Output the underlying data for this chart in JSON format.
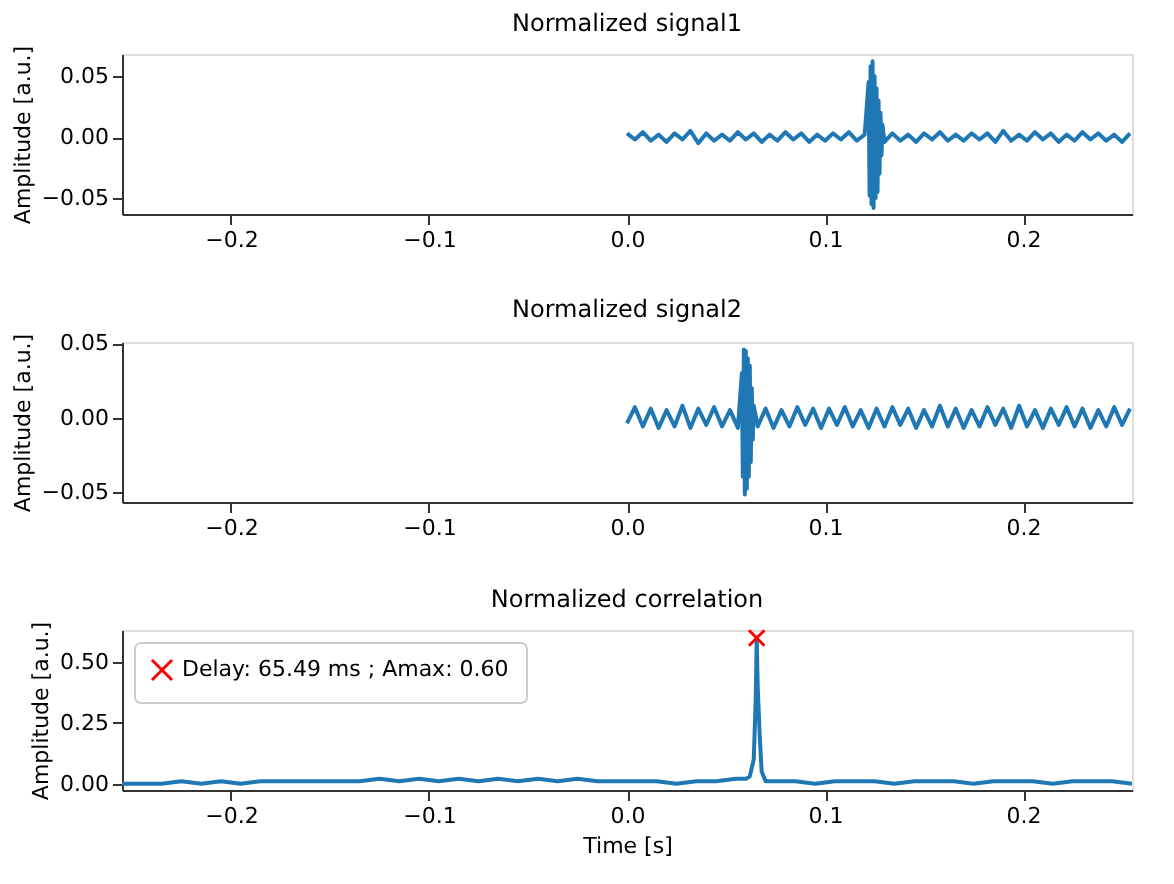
{
  "chart_data": [
    {
      "type": "line",
      "title": "Normalized signal1",
      "ylabel": "Amplitude [a.u.]",
      "xlim": [
        -0.255,
        0.255
      ],
      "ylim": [
        -0.063,
        0.068
      ],
      "xticks": [
        {
          "value": -0.2,
          "label": "−0.2"
        },
        {
          "value": -0.1,
          "label": "−0.1"
        },
        {
          "value": 0,
          "label": "0.0"
        },
        {
          "value": 0.1,
          "label": "0.1"
        },
        {
          "value": 0.2,
          "label": "0.2"
        }
      ],
      "yticks": [
        {
          "value": -0.05,
          "label": "−0.05"
        },
        {
          "value": 0,
          "label": "0.00"
        },
        {
          "value": 0.05,
          "label": "0.05"
        }
      ],
      "grid": false,
      "series": [
        {
          "color": "#1f77b4",
          "x": [
            0,
            0.004,
            0.008,
            0.012,
            0.016,
            0.02,
            0.024,
            0.028,
            0.032,
            0.036,
            0.04,
            0.044,
            0.048,
            0.052,
            0.056,
            0.06,
            0.064,
            0.068,
            0.072,
            0.076,
            0.08,
            0.084,
            0.088,
            0.092,
            0.096,
            0.1,
            0.104,
            0.108,
            0.112,
            0.116,
            0.12,
            0.122,
            0.1225,
            0.123,
            0.1235,
            0.124,
            0.1245,
            0.125,
            0.1255,
            0.126,
            0.1265,
            0.127,
            0.1275,
            0.128,
            0.1285,
            0.129,
            0.13,
            0.134,
            0.138,
            0.142,
            0.146,
            0.15,
            0.154,
            0.158,
            0.162,
            0.166,
            0.17,
            0.174,
            0.178,
            0.182,
            0.186,
            0.19,
            0.194,
            0.198,
            0.202,
            0.206,
            0.21,
            0.214,
            0.218,
            0.222,
            0.226,
            0.23,
            0.234,
            0.238,
            0.242,
            0.246,
            0.25,
            0.254
          ],
          "values": [
            0.003,
            -0.002,
            0.004,
            -0.003,
            0.002,
            -0.004,
            0.003,
            -0.002,
            0.005,
            -0.005,
            0.003,
            -0.003,
            0.002,
            -0.003,
            0.004,
            -0.002,
            0.003,
            -0.004,
            0.002,
            -0.003,
            0.004,
            -0.002,
            0.003,
            -0.004,
            0.002,
            -0.003,
            0.003,
            -0.002,
            0.004,
            -0.003,
            0.002,
            0.045,
            -0.048,
            0.058,
            -0.055,
            0.062,
            -0.058,
            0.05,
            -0.05,
            0.04,
            -0.045,
            0.03,
            -0.03,
            0.02,
            -0.015,
            0.01,
            -0.004,
            0.003,
            -0.003,
            0.002,
            -0.004,
            0.003,
            -0.002,
            0.004,
            -0.003,
            0.002,
            -0.003,
            0.003,
            -0.002,
            0.003,
            -0.004,
            0.005,
            -0.003,
            0.002,
            -0.003,
            0.004,
            -0.002,
            0.003,
            -0.004,
            0.002,
            -0.003,
            0.004,
            -0.002,
            0.003,
            -0.003,
            0.002,
            -0.004,
            0.003
          ]
        }
      ]
    },
    {
      "type": "line",
      "title": "Normalized signal2",
      "ylabel": "Amplitude [a.u.]",
      "xlim": [
        -0.255,
        0.255
      ],
      "ylim": [
        -0.057,
        0.051
      ],
      "xticks": [
        {
          "value": -0.2,
          "label": "−0.2"
        },
        {
          "value": -0.1,
          "label": "−0.1"
        },
        {
          "value": 0,
          "label": "0.0"
        },
        {
          "value": 0.1,
          "label": "0.1"
        },
        {
          "value": 0.2,
          "label": "0.2"
        }
      ],
      "yticks": [
        {
          "value": -0.05,
          "label": "−0.05"
        },
        {
          "value": 0,
          "label": "0.00"
        },
        {
          "value": 0.05,
          "label": "0.05"
        }
      ],
      "grid": false,
      "series": [
        {
          "color": "#1f77b4",
          "x": [
            0,
            0.004,
            0.008,
            0.012,
            0.016,
            0.02,
            0.024,
            0.028,
            0.032,
            0.036,
            0.04,
            0.044,
            0.048,
            0.052,
            0.056,
            0.058,
            0.0585,
            0.059,
            0.0595,
            0.06,
            0.0605,
            0.061,
            0.0615,
            0.062,
            0.0625,
            0.063,
            0.0635,
            0.064,
            0.066,
            0.07,
            0.074,
            0.078,
            0.082,
            0.086,
            0.09,
            0.094,
            0.098,
            0.102,
            0.106,
            0.11,
            0.114,
            0.118,
            0.122,
            0.126,
            0.13,
            0.134,
            0.138,
            0.142,
            0.146,
            0.15,
            0.154,
            0.158,
            0.162,
            0.166,
            0.17,
            0.174,
            0.178,
            0.182,
            0.186,
            0.19,
            0.194,
            0.198,
            0.202,
            0.206,
            0.21,
            0.214,
            0.218,
            0.222,
            0.226,
            0.23,
            0.234,
            0.238,
            0.242,
            0.246,
            0.25,
            0.254
          ],
          "values": [
            -0.004,
            0.007,
            -0.006,
            0.006,
            -0.007,
            0.005,
            -0.006,
            0.008,
            -0.007,
            0.006,
            -0.005,
            0.007,
            -0.006,
            0.005,
            -0.007,
            0.03,
            -0.04,
            0.046,
            -0.052,
            0.045,
            -0.048,
            0.04,
            -0.04,
            0.035,
            -0.03,
            0.02,
            -0.015,
            0.008,
            -0.006,
            0.006,
            -0.007,
            0.005,
            -0.006,
            0.007,
            -0.005,
            0.006,
            -0.007,
            0.006,
            -0.005,
            0.007,
            -0.006,
            0.005,
            -0.007,
            0.006,
            -0.006,
            0.007,
            -0.005,
            0.006,
            -0.007,
            0.005,
            -0.006,
            0.008,
            -0.006,
            0.006,
            -0.007,
            0.005,
            -0.006,
            0.007,
            -0.005,
            0.006,
            -0.007,
            0.008,
            -0.006,
            0.005,
            -0.007,
            0.006,
            -0.005,
            0.007,
            -0.006,
            0.006,
            -0.007,
            0.005,
            -0.006,
            0.007,
            -0.005,
            0.006
          ]
        }
      ]
    },
    {
      "type": "line",
      "title": "Normalized correlation",
      "xlabel": "Time [s]",
      "ylabel": "Amplitude [a.u.]",
      "xlim": [
        -0.255,
        0.255
      ],
      "ylim": [
        -0.026,
        0.633
      ],
      "xticks": [
        {
          "value": -0.2,
          "label": "−0.2"
        },
        {
          "value": -0.1,
          "label": "−0.1"
        },
        {
          "value": 0,
          "label": "0.0"
        },
        {
          "value": 0.1,
          "label": "0.1"
        },
        {
          "value": 0.2,
          "label": "0.2"
        }
      ],
      "yticks": [
        {
          "value": 0,
          "label": "0.00"
        },
        {
          "value": 0.25,
          "label": "0.25"
        },
        {
          "value": 0.5,
          "label": "0.50"
        }
      ],
      "grid": false,
      "legend": "top left",
      "series": [
        {
          "color": "#1f77b4",
          "x": [
            -0.255,
            -0.245,
            -0.235,
            -0.225,
            -0.215,
            -0.205,
            -0.195,
            -0.185,
            -0.175,
            -0.165,
            -0.155,
            -0.145,
            -0.135,
            -0.125,
            -0.115,
            -0.105,
            -0.095,
            -0.085,
            -0.075,
            -0.065,
            -0.055,
            -0.045,
            -0.035,
            -0.025,
            -0.015,
            -0.005,
            0.005,
            0.015,
            0.025,
            0.035,
            0.045,
            0.055,
            0.06,
            0.062,
            0.064,
            0.065,
            0.06549,
            0.066,
            0.067,
            0.068,
            0.07,
            0.075,
            0.085,
            0.095,
            0.105,
            0.115,
            0.125,
            0.135,
            0.145,
            0.155,
            0.165,
            0.175,
            0.185,
            0.195,
            0.205,
            0.215,
            0.225,
            0.235,
            0.245,
            0.255
          ],
          "values": [
            0,
            0,
            0,
            0.01,
            0,
            0.01,
            0,
            0.01,
            0.01,
            0.01,
            0.01,
            0.01,
            0.01,
            0.02,
            0.01,
            0.02,
            0.01,
            0.02,
            0.01,
            0.02,
            0.01,
            0.02,
            0.01,
            0.02,
            0.01,
            0.01,
            0.01,
            0.01,
            0,
            0.01,
            0.01,
            0.02,
            0.02,
            0.03,
            0.1,
            0.35,
            0.6,
            0.4,
            0.2,
            0.05,
            0.01,
            0.01,
            0.01,
            0,
            0.01,
            0.01,
            0.01,
            0,
            0.01,
            0.01,
            0.01,
            0,
            0.01,
            0.01,
            0.01,
            0,
            0.01,
            0.01,
            0.01,
            0
          ]
        },
        {
          "type": "scatter",
          "name": "Delay: 65.49 ms ; Amax: 0.60",
          "color": "#ff0000",
          "marker": "cross",
          "x": [
            0.06549
          ],
          "values": [
            0.6
          ]
        }
      ]
    }
  ]
}
